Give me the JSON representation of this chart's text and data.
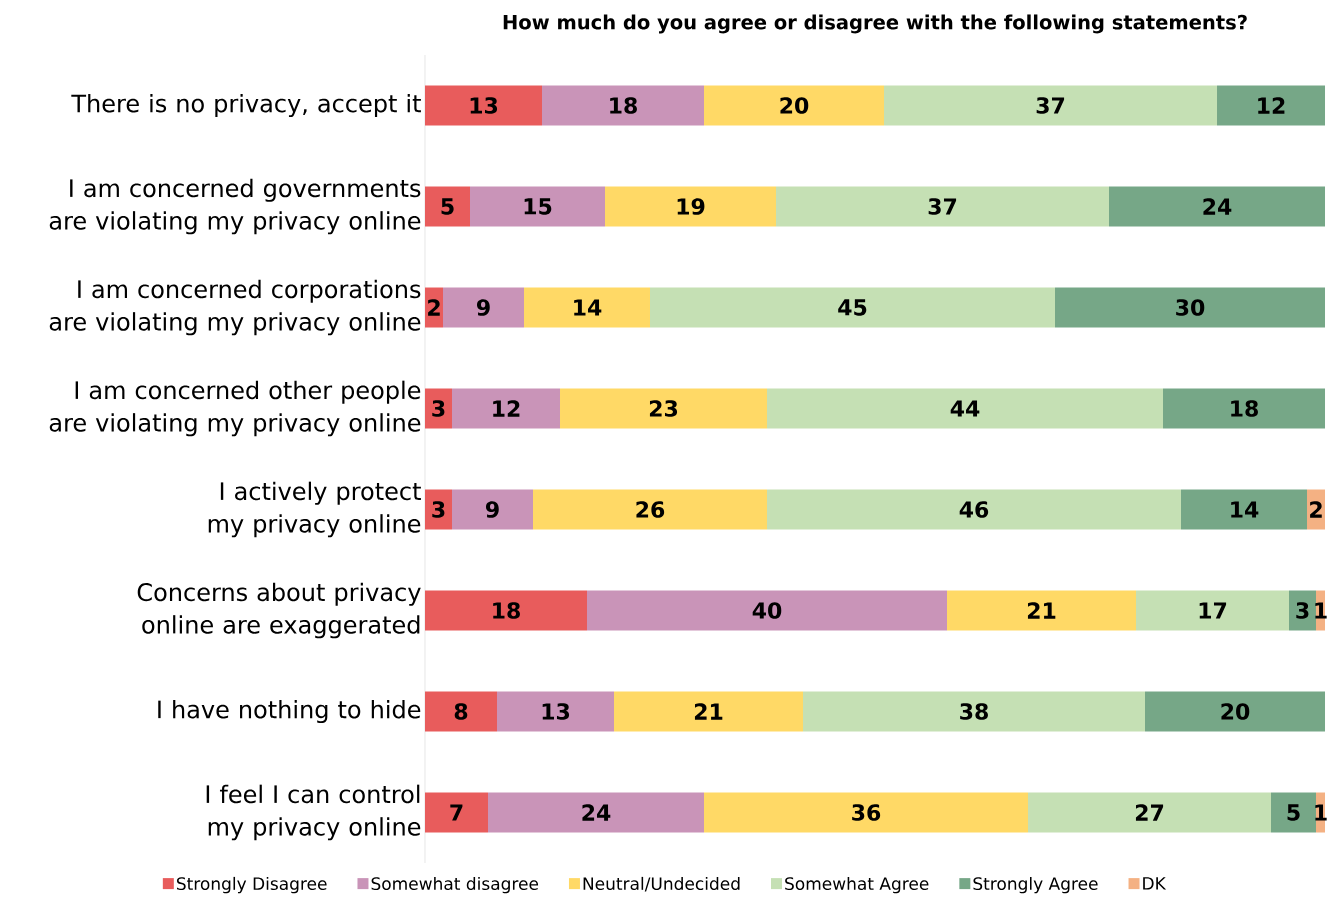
{
  "chart_data": {
    "type": "bar",
    "orientation": "horizontal",
    "stacked": true,
    "title": "How much do you agree or disagree with the following statements?",
    "categories": [
      "There is no privacy, accept it",
      "I am concerned governments are violating my privacy online",
      "I am concerned corporations are violating my privacy online",
      "I am concerned other people are violating my privacy online",
      "I actively protect my privacy online",
      "Concerns about privacy online are exaggerated",
      "I have nothing to hide",
      "I feel I can control my privacy online"
    ],
    "series": [
      {
        "name": "Strongly Disagree",
        "color": "#e85c5c",
        "values": [
          13,
          5,
          2,
          3,
          3,
          18,
          8,
          7
        ]
      },
      {
        "name": "Somewhat disagree",
        "color": "#c994b8",
        "values": [
          18,
          15,
          9,
          12,
          9,
          40,
          13,
          24
        ]
      },
      {
        "name": "Neutral/Undecided",
        "color": "#ffd966",
        "values": [
          20,
          19,
          14,
          23,
          26,
          21,
          21,
          36
        ]
      },
      {
        "name": "Somewhat Agree",
        "color": "#c5e0b4",
        "values": [
          37,
          37,
          45,
          44,
          46,
          17,
          38,
          27
        ]
      },
      {
        "name": "Strongly Agree",
        "color": "#76a787",
        "values": [
          12,
          24,
          30,
          18,
          14,
          3,
          20,
          5
        ]
      },
      {
        "name": "DK",
        "color": "#f4b183",
        "values": [
          null,
          null,
          null,
          null,
          2,
          1,
          null,
          1
        ]
      }
    ],
    "data_labels": true,
    "legend": "bottom"
  }
}
